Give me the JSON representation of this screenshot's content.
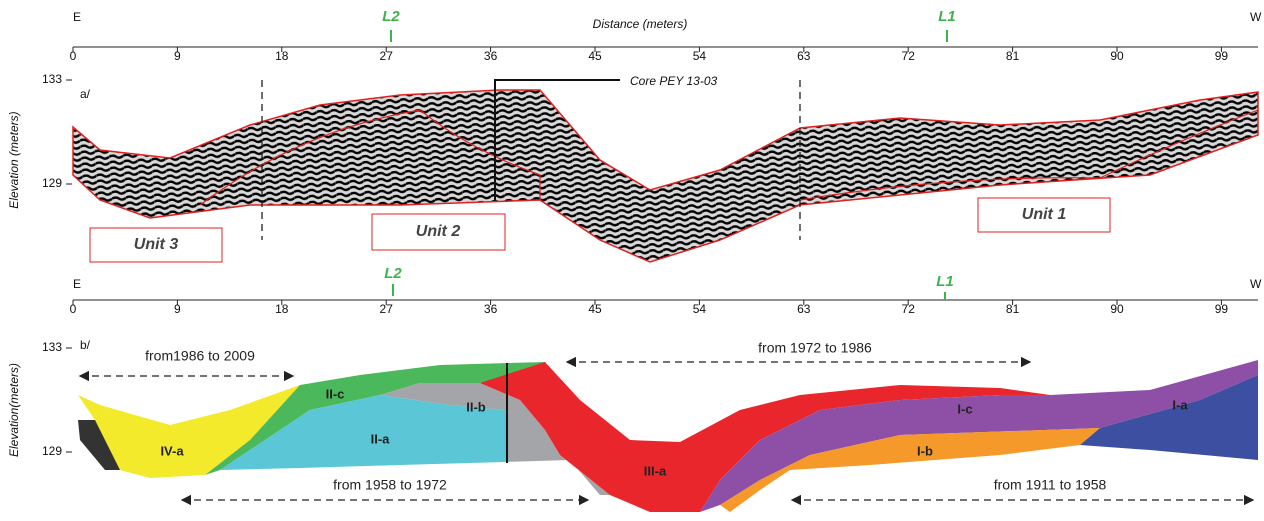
{
  "panel_a": {
    "label": "a/",
    "east": "E",
    "west": "W",
    "line_l2": "L2",
    "line_l1": "L1",
    "x_axis_title": "Distance (meters)",
    "xticks": [
      0,
      9,
      18,
      27,
      36,
      45,
      54,
      63,
      72,
      81,
      90,
      99
    ],
    "y_axis_title": "Elevation (meters)",
    "yticks": [
      133,
      129
    ],
    "core": "Core PEY 13-03",
    "units": [
      "Unit 3",
      "Unit 2",
      "Unit 1"
    ]
  },
  "panel_b": {
    "label": "b/",
    "east": "E",
    "west": "W",
    "line_l2": "L2",
    "line_l1": "L1",
    "xticks": [
      0,
      9,
      18,
      27,
      36,
      45,
      54,
      63,
      72,
      81,
      90,
      99
    ],
    "y_axis_title": "Elevation(meters)",
    "yticks": [
      133,
      129
    ],
    "periods": [
      "from1986 to 2009",
      "from 1972 to 1986",
      "from 1958 to 1972",
      "from 1911 to 1958"
    ],
    "subunits": [
      "IV-a",
      "II-c",
      "II-b",
      "II-a",
      "III-a",
      "I-c",
      "I-b",
      "I-a"
    ]
  }
}
